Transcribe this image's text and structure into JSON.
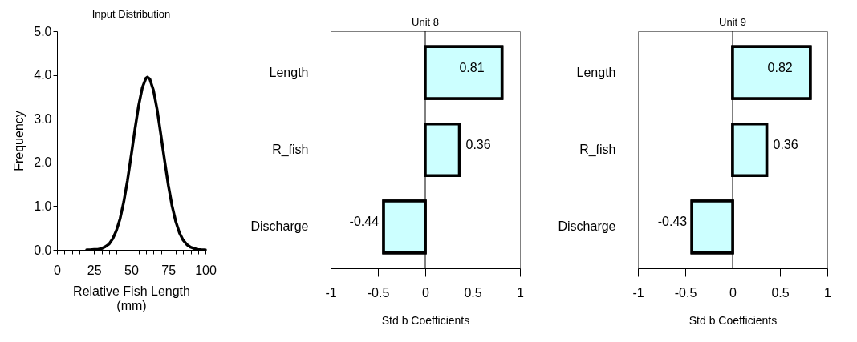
{
  "chart_data": [
    {
      "type": "line",
      "title": "Input Distribution",
      "xlabel": "Relative Fish Length\n(mm)",
      "ylabel": "Frequency",
      "x": [
        20,
        22.5,
        25,
        27.5,
        30,
        32.5,
        35,
        37.5,
        40,
        42.5,
        45,
        47.5,
        50,
        52.5,
        55,
        57.5,
        60,
        61,
        62.5,
        65,
        67.5,
        70,
        72.5,
        75,
        77.5,
        80,
        82.5,
        85,
        87.5,
        90,
        92.5,
        95,
        97.5,
        100
      ],
      "series": [
        {
          "color": "#000000",
          "values": [
            0.0,
            0.0,
            0.01,
            0.01,
            0.03,
            0.07,
            0.13,
            0.25,
            0.44,
            0.71,
            1.1,
            1.59,
            2.16,
            2.75,
            3.3,
            3.71,
            3.93,
            3.95,
            3.91,
            3.65,
            3.2,
            2.63,
            2.04,
            1.48,
            1.01,
            0.65,
            0.39,
            0.22,
            0.12,
            0.06,
            0.03,
            0.01,
            0.0,
            0.0
          ]
        }
      ],
      "xlim": [
        0,
        100
      ],
      "xticks": [
        0,
        {
          "value": 5,
          "label": null
        },
        {
          "value": 10,
          "label": null
        },
        {
          "value": 15,
          "label": null
        },
        {
          "value": 20,
          "label": null
        },
        25,
        {
          "value": 30,
          "label": null
        },
        {
          "value": 35,
          "label": null
        },
        {
          "value": 40,
          "label": null
        },
        {
          "value": 45,
          "label": null
        },
        50,
        {
          "value": 55,
          "label": null
        },
        {
          "value": 60,
          "label": null
        },
        {
          "value": 65,
          "label": null
        },
        {
          "value": 70,
          "label": null
        },
        75,
        {
          "value": 80,
          "label": null
        },
        {
          "value": 85,
          "label": null
        },
        {
          "value": 90,
          "label": null
        },
        {
          "value": 95,
          "label": null
        },
        100
      ],
      "ylim": [
        0,
        5
      ],
      "yticks": [
        {
          "value": 0,
          "label": "0.0"
        },
        {
          "value": 1,
          "label": "1.0"
        },
        {
          "value": 2,
          "label": "2.0"
        },
        {
          "value": 3,
          "label": "3.0"
        },
        {
          "value": 4,
          "label": "4.0"
        },
        {
          "value": 5,
          "label": "5.0"
        }
      ],
      "grid": false,
      "marker": "none",
      "line_style": "solid"
    },
    {
      "type": "bar",
      "orientation": "horizontal",
      "title": "Unit 8",
      "xlabel": "Std b Coefficients",
      "categories": [
        "Length",
        "R_fish",
        "Discharge"
      ],
      "values": [
        0.81,
        0.36,
        -0.44
      ],
      "color": "#ccffff",
      "xlim": [
        -1,
        1
      ],
      "xticks": [
        -1,
        -0.5,
        0,
        0.5,
        1
      ],
      "data_labels": true,
      "grid": false,
      "ref_lines": [
        {
          "axis": "x",
          "value": 0,
          "color": "#000000"
        }
      ]
    },
    {
      "type": "bar",
      "orientation": "horizontal",
      "title": "Unit 9",
      "xlabel": "Std b Coefficients",
      "categories": [
        "Length",
        "R_fish",
        "Discharge"
      ],
      "values": [
        0.82,
        0.36,
        -0.43
      ],
      "color": "#ccffff",
      "xlim": [
        -1,
        1
      ],
      "xticks": [
        -1,
        -0.5,
        0,
        0.5,
        1
      ],
      "data_labels": true,
      "grid": false,
      "ref_lines": [
        {
          "axis": "x",
          "value": 0,
          "color": "#000000"
        }
      ]
    }
  ]
}
